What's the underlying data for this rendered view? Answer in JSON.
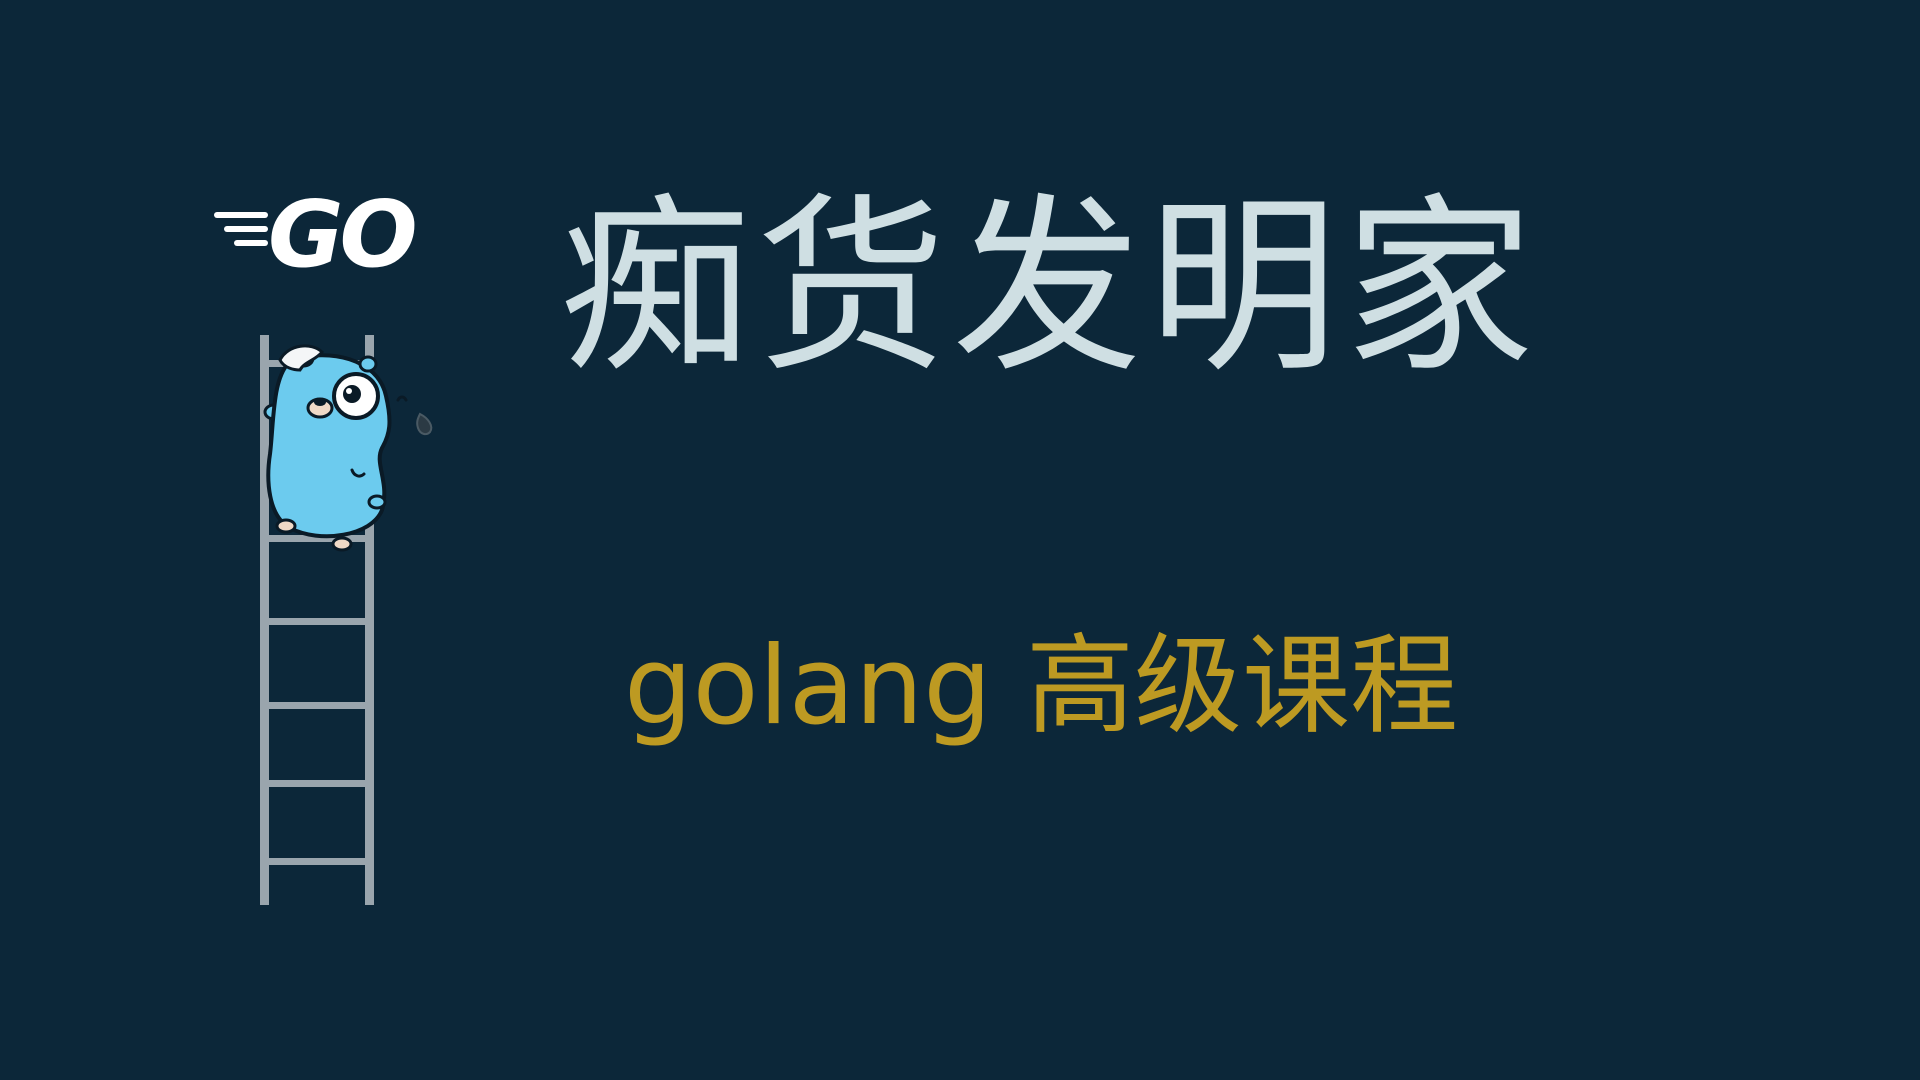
{
  "slide": {
    "title": "痴货发明家",
    "subtitle": "golang 高级课程"
  },
  "logo": {
    "text": "GO",
    "icon": "go-logo-icon"
  },
  "illustration": {
    "icon": "gopher-climbing-ladder-icon"
  },
  "colors": {
    "background": "#0c2739",
    "title": "#cfdfe3",
    "subtitle": "#bd9a22",
    "gopher": "#6ccbee",
    "ladder": "#9aa5ad"
  }
}
